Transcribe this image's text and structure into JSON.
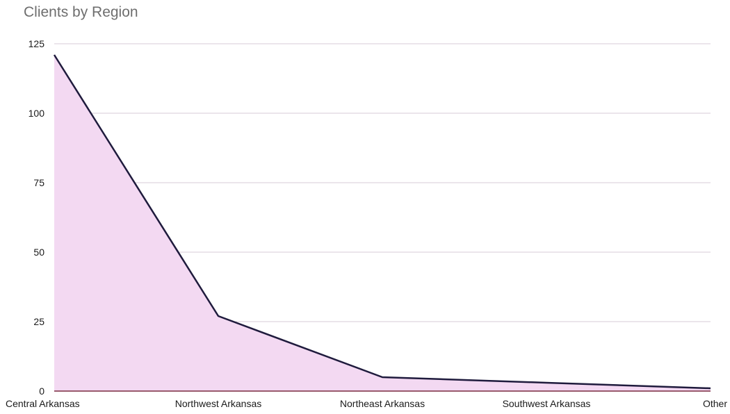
{
  "chart_data": {
    "type": "area",
    "title": "Clients by Region",
    "xlabel": "",
    "ylabel": "",
    "categories": [
      "Central Arkansas",
      "Northwest Arkansas",
      "Northeast Arkansas",
      "Southwest Arkansas",
      "Other"
    ],
    "series": [
      {
        "values": [
          121,
          27,
          5,
          3,
          1
        ]
      }
    ],
    "ylim": [
      0,
      125
    ],
    "yticks": [
      0,
      25,
      50,
      75,
      100,
      125
    ],
    "grid": true,
    "legend": "none",
    "colors": {
      "fill": "#f3d9f2",
      "line": "#1f1b3d",
      "grid": "#d7cbd7",
      "baseline": "#7a2a40"
    }
  }
}
